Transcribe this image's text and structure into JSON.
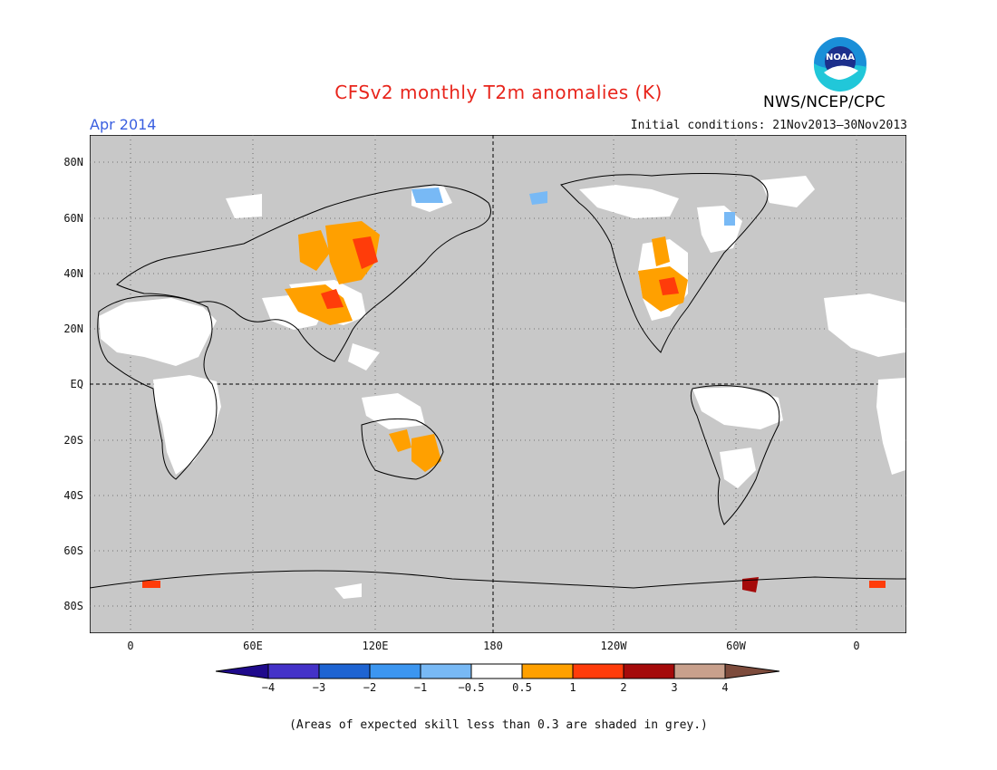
{
  "title": "CFSv2 monthly T2m anomalies (K)",
  "month": "Apr 2014",
  "initial_conditions": "Initial conditions: 21Nov2013–30Nov2013",
  "agency": "NWS/NCEP/CPC",
  "logo_text": "NOAA",
  "note": "(Areas of expected skill less than 0.3 are shaded in grey.)",
  "lat_labels": [
    "80N",
    "60N",
    "40N",
    "20N",
    "EQ",
    "20S",
    "40S",
    "60S",
    "80S"
  ],
  "lon_labels": [
    "0",
    "60E",
    "120E",
    "180",
    "120W",
    "60W",
    "0"
  ],
  "colorbar": {
    "labels": [
      "−4",
      "−3",
      "−2",
      "−1",
      "−0.5",
      "0.5",
      "1",
      "2",
      "3",
      "4"
    ],
    "colors": [
      "#1f0a8c",
      "#4432c8",
      "#1e64d2",
      "#3c96f0",
      "#78b9f5",
      "#ffffff",
      "#ffa000",
      "#ff3c0a",
      "#a50a0a",
      "#c8a08c",
      "#7d4b3c"
    ]
  },
  "colors": {
    "land_skill": "#ffffff",
    "grey_low_skill": "#c8c8c8",
    "title": "#e8251c",
    "month": "#3a5fe0"
  }
}
